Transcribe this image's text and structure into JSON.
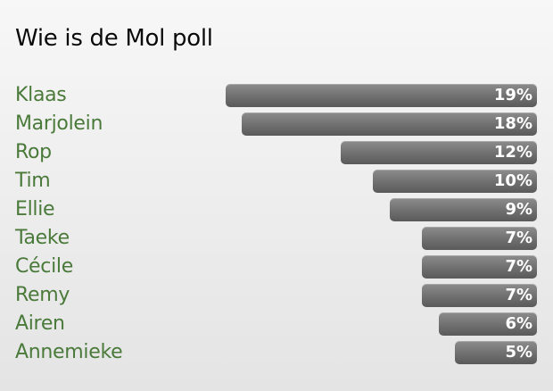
{
  "chart_data": {
    "type": "bar",
    "orientation": "horizontal",
    "title": "Wie is de Mol poll",
    "categories": [
      "Klaas",
      "Marjolein",
      "Rop",
      "Tim",
      "Ellie",
      "Taeke",
      "Cécile",
      "Remy",
      "Airen",
      "Annemieke"
    ],
    "values": [
      19,
      18,
      12,
      10,
      9,
      7,
      7,
      7,
      6,
      5
    ],
    "value_labels": [
      "19%",
      "18%",
      "12%",
      "10%",
      "9%",
      "7%",
      "7%",
      "7%",
      "6%",
      "5%"
    ],
    "xlim": [
      0,
      19
    ],
    "grid": false,
    "legend": "none",
    "colors": {
      "bar": "#7a7a7a",
      "label": "#4a7a3a",
      "value_text": "#ffffff",
      "title": "#0a0a0a"
    }
  }
}
